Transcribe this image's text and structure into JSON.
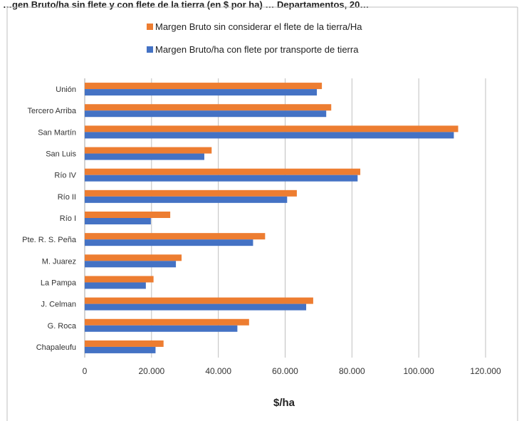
{
  "chart_data": {
    "type": "bar",
    "orientation": "horizontal",
    "title": "…gen Bruto/ha sin flete y con flete de la tierra (en $ por ha) … Departamentos, 20…",
    "categories": [
      "Unión",
      "Tercero Arriba",
      "San Martín",
      "San Luis",
      "Río IV",
      "Río II",
      "Río I",
      "Pte. R. S. Peña",
      "M. Juarez",
      "La Pampa",
      "J. Celman",
      "G. Roca",
      "Chapaleufu"
    ],
    "series": [
      {
        "name": "Margen Bruto sin considerar el flete de la tierra/Ha",
        "color": "#ED7D31",
        "values": [
          71000,
          73800,
          111800,
          38000,
          82500,
          63500,
          25600,
          54000,
          29000,
          20600,
          68400,
          49200,
          23600
        ]
      },
      {
        "name": "Margen Bruto/ha con flete por transporte de tierra",
        "color": "#4472C4",
        "values": [
          69500,
          72300,
          110500,
          35800,
          81700,
          60600,
          19800,
          50400,
          27300,
          18300,
          66300,
          45700,
          21200
        ]
      }
    ],
    "xlabel": "$/ha",
    "ylabel": "",
    "xlim": [
      0,
      120000
    ],
    "xticks": [
      0,
      20000,
      40000,
      60000,
      80000,
      100000,
      120000
    ],
    "xtick_labels": [
      "0",
      "20.000",
      "40.000",
      "60.000",
      "80.000",
      "100.000",
      "120.000"
    ],
    "grid": "vertical",
    "legend_position": "top"
  }
}
